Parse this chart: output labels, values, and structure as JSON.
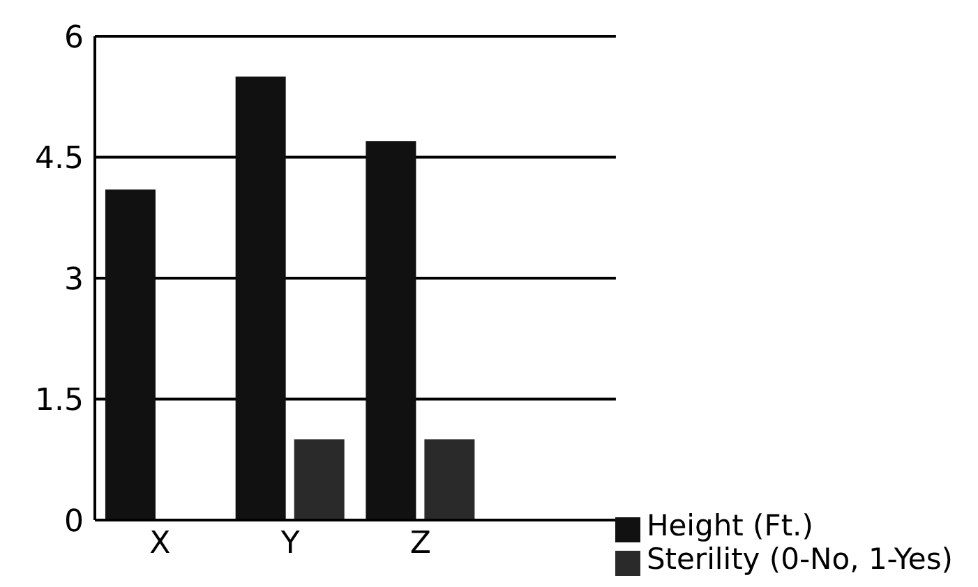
{
  "chart_data": {
    "type": "bar",
    "categories": [
      "X",
      "Y",
      "Z",
      null
    ],
    "series": [
      {
        "name": "Height (Ft.)",
        "color": "#111111",
        "values": [
          4.1,
          5.5,
          4.7,
          null
        ]
      },
      {
        "name": "Sterility (0-No, 1-Yes)",
        "color": "#2a2a2a",
        "values": [
          0,
          1,
          1,
          null
        ]
      }
    ],
    "ylim": [
      0,
      6
    ],
    "yticks": [
      0,
      1.5,
      3,
      4.5,
      6
    ],
    "grid": "y",
    "legend": "bottom right"
  }
}
